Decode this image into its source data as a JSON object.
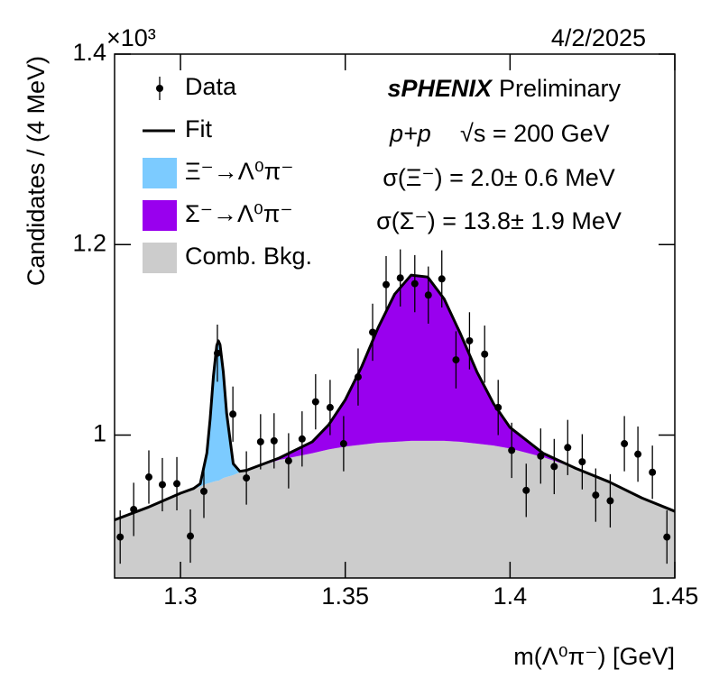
{
  "chart_data": {
    "type": "fit",
    "date": "4/2/2025",
    "y_exponent": "×10³",
    "experiment": "sPHENIX",
    "status": "Preliminary",
    "system": "p+p",
    "energy": "√s = 200 GeV",
    "annotations": [
      "σ(Ξ⁻) = 2.0± 0.6 MeV",
      "σ(Σ⁻) = 13.8± 1.9 MeV"
    ],
    "xlabel": "m(Λ⁰π⁻) [GeV]",
    "ylabel": "Candidates / (4 MeV)",
    "xlim": [
      1.28,
      1.45
    ],
    "xticks": [
      1.3,
      1.35,
      1.4,
      1.45
    ],
    "ylim": [
      0.85,
      1.4
    ],
    "yticks": [
      1,
      1.2,
      1.4
    ],
    "legend": "top-left",
    "x": [
      1.28,
      1.29,
      1.3,
      1.304,
      1.306,
      1.308,
      1.309,
      1.31,
      1.311,
      1.3115,
      1.312,
      1.313,
      1.314,
      1.316,
      1.318,
      1.32,
      1.33,
      1.34,
      1.345,
      1.35,
      1.355,
      1.36,
      1.365,
      1.37,
      1.375,
      1.38,
      1.385,
      1.39,
      1.395,
      1.4,
      1.41,
      1.42,
      1.43,
      1.44,
      1.45
    ],
    "series": [
      {
        "name": "Data",
        "color": "#000000",
        "x": [
          1.2817,
          1.2858,
          1.2904,
          1.2945,
          1.2989,
          1.303,
          1.3071,
          1.3112,
          1.3159,
          1.32,
          1.3243,
          1.3284,
          1.3328,
          1.3369,
          1.341,
          1.3454,
          1.3495,
          1.3539,
          1.3583,
          1.3624,
          1.3667,
          1.3711,
          1.3752,
          1.3793,
          1.3836,
          1.3877,
          1.3923,
          1.3964,
          1.4005,
          1.4049,
          1.4093,
          1.4134,
          1.4175,
          1.4219,
          1.426,
          1.4304,
          1.4347,
          1.4388,
          1.4432,
          1.4476
        ],
        "values": [
          0.893,
          0.922,
          0.956,
          0.948,
          0.949,
          0.894,
          0.941,
          1.086,
          1.022,
          0.955,
          0.993,
          0.994,
          0.973,
          0.996,
          1.035,
          1.029,
          0.991,
          1.061,
          1.108,
          1.158,
          1.165,
          1.159,
          1.147,
          1.164,
          1.079,
          1.099,
          1.085,
          1.029,
          0.984,
          0.942,
          0.978,
          0.967,
          0.987,
          0.972,
          0.937,
          0.931,
          0.991,
          0.98,
          0.961,
          0.893
        ],
        "errors": [
          0.028,
          0.028,
          0.028,
          0.028,
          0.028,
          0.028,
          0.028,
          0.03,
          0.029,
          0.028,
          0.029,
          0.029,
          0.029,
          0.029,
          0.029,
          0.029,
          0.029,
          0.03,
          0.03,
          0.03,
          0.03,
          0.03,
          0.03,
          0.03,
          0.03,
          0.03,
          0.03,
          0.029,
          0.029,
          0.028,
          0.029,
          0.029,
          0.029,
          0.029,
          0.028,
          0.028,
          0.029,
          0.029,
          0.028,
          0.028
        ]
      },
      {
        "name": "Fit",
        "color": "#000000",
        "values": [
          0.911,
          0.924,
          0.939,
          0.944,
          0.949,
          0.981,
          1.017,
          1.062,
          1.094,
          1.099,
          1.095,
          1.066,
          1.023,
          0.97,
          0.962,
          0.963,
          0.976,
          0.993,
          1.011,
          1.037,
          1.072,
          1.113,
          1.148,
          1.168,
          1.166,
          1.143,
          1.106,
          1.066,
          1.033,
          1.008,
          0.981,
          0.965,
          0.951,
          0.934,
          0.92
        ]
      },
      {
        "name": "Ξ⁻→Λ⁰π⁻",
        "color": "#7ccbff",
        "values": [
          0,
          0,
          0,
          0,
          0.003,
          0.032,
          0.067,
          0.111,
          0.142,
          0.147,
          0.142,
          0.111,
          0.067,
          0.012,
          0.001,
          0,
          0,
          0,
          0,
          0,
          0,
          0,
          0,
          0,
          0,
          0,
          0,
          0,
          0,
          0,
          0,
          0,
          0,
          0,
          0
        ]
      },
      {
        "name": "Σ⁻→Λ⁰π⁻",
        "color": "#9900ee",
        "values": [
          0,
          0,
          0,
          0,
          0,
          0,
          0,
          0,
          0,
          0,
          0,
          0,
          0,
          0,
          0,
          0,
          0.002,
          0.012,
          0.026,
          0.049,
          0.082,
          0.121,
          0.155,
          0.174,
          0.172,
          0.149,
          0.113,
          0.075,
          0.044,
          0.022,
          0.004,
          0,
          0,
          0,
          0
        ]
      },
      {
        "name": "Comb. Bkg.",
        "color": "#cccccc",
        "values": [
          0.911,
          0.924,
          0.939,
          0.944,
          0.946,
          0.949,
          0.95,
          0.951,
          0.952,
          0.952,
          0.953,
          0.955,
          0.956,
          0.958,
          0.961,
          0.963,
          0.974,
          0.981,
          0.985,
          0.988,
          0.99,
          0.992,
          0.993,
          0.994,
          0.994,
          0.994,
          0.993,
          0.991,
          0.989,
          0.986,
          0.977,
          0.965,
          0.951,
          0.934,
          0.92
        ]
      }
    ]
  }
}
